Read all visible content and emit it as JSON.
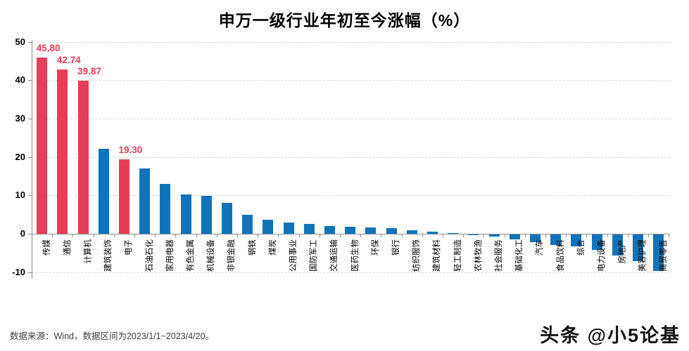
{
  "title": "申万一级行业年初至今涨幅（%）",
  "source_note": "数据来源：Wind，数据区间为2023/1/1~2023/4/20。",
  "watermark": "头条 @小5论基",
  "colors": {
    "highlight_red": "#e63e56",
    "bar_blue": "#1173b9",
    "axis_gray": "#8c8c8c",
    "grid_gray": "#d9d9d9"
  },
  "chart_data": {
    "type": "bar",
    "title": "申万一级行业年初至今涨幅（%）",
    "xlabel": "",
    "ylabel": "",
    "ylim": [
      -10,
      50
    ],
    "yticks": [
      50,
      40,
      30,
      20,
      10,
      0,
      -10
    ],
    "grid": true,
    "legend": false,
    "categories": [
      "传媒",
      "通信",
      "计算机",
      "建筑装饰",
      "电子",
      "石油石化",
      "家用电器",
      "有色金属",
      "机械设备",
      "非银金融",
      "钢铁",
      "煤炭",
      "公用事业",
      "国防军工",
      "交通运输",
      "医药生物",
      "环保",
      "银行",
      "纺织服饰",
      "建筑材料",
      "轻工制造",
      "农林牧渔",
      "社会服务",
      "基础化工",
      "汽车",
      "食品饮料",
      "综合",
      "电力设备",
      "房地产",
      "美容护理",
      "商贸零售"
    ],
    "values": [
      45.8,
      42.74,
      39.87,
      22.1,
      19.3,
      17.0,
      12.9,
      10.3,
      9.9,
      8.1,
      4.9,
      3.6,
      2.9,
      2.6,
      2.1,
      1.8,
      1.7,
      1.5,
      1.0,
      0.6,
      0.1,
      -0.1,
      -0.5,
      -1.2,
      -2.0,
      -2.8,
      -3.1,
      -4.1,
      -5.5,
      -6.9,
      -9.5
    ],
    "highlight_indices": [
      0,
      1,
      2,
      4
    ],
    "value_labels": {
      "0": "45.80",
      "1": "42.74",
      "2": "39.87",
      "4": "19.30"
    },
    "highlight_color": "#e63e56",
    "default_color": "#1173b9"
  }
}
